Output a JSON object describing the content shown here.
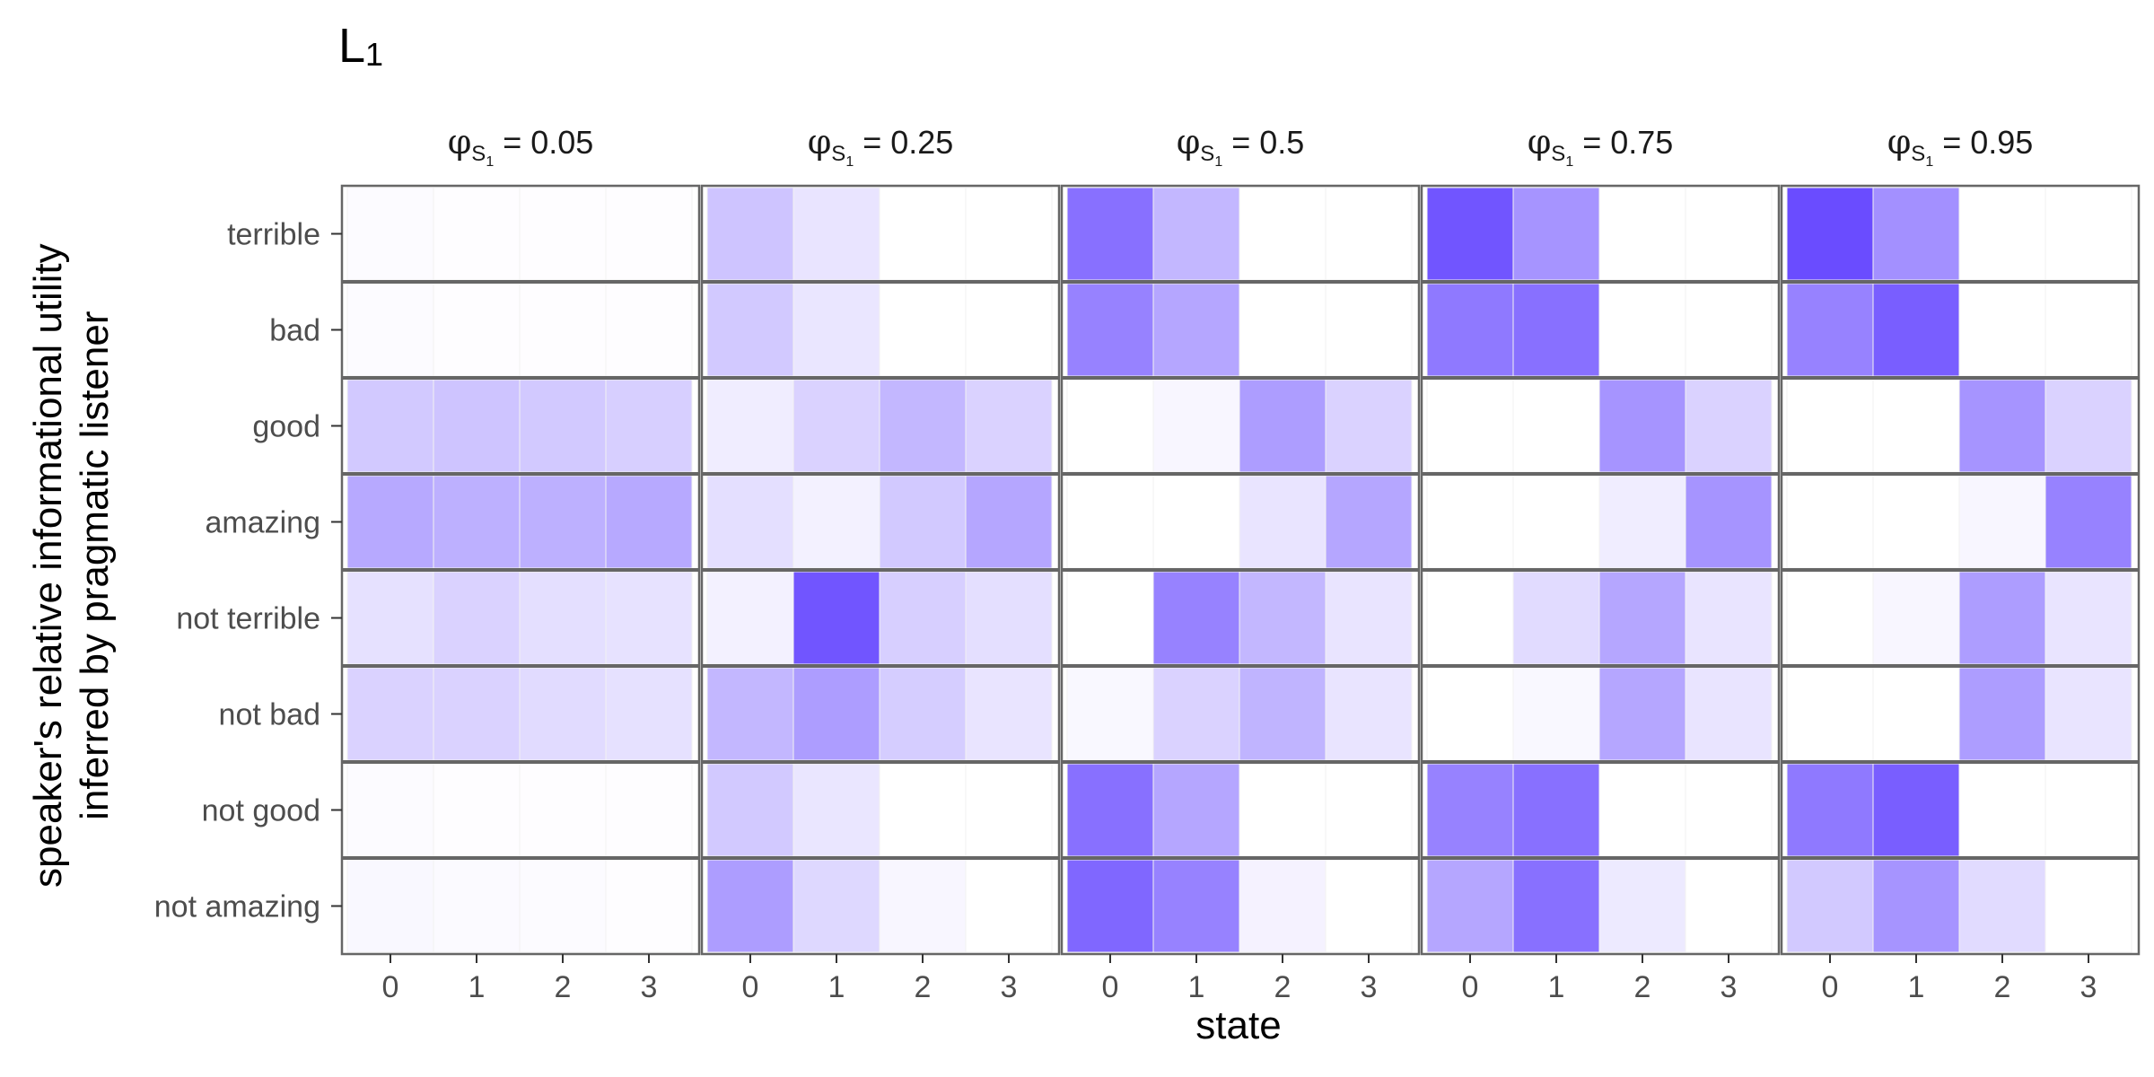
{
  "title_main": "L",
  "title_sub": "1",
  "xlabel": "state",
  "ylabel_line1": "speaker's relative informational utility",
  "ylabel_line2": "inferred by pragmatic listener",
  "facet_param_symbol": "φ",
  "facet_param_sub": "S",
  "facet_param_subsub": "1",
  "colors": {
    "high": "#6a4cff",
    "low": "#ffffff",
    "frame": "#666666",
    "text": "#4d4d4d"
  },
  "chart_data": {
    "type": "heatmap",
    "title": "L1",
    "xlabel": "state",
    "ylabel": "speaker's relative informational utility inferred by pragmatic listener",
    "states": [
      "0",
      "1",
      "2",
      "3"
    ],
    "rows": [
      "terrible",
      "bad",
      "good",
      "amazing",
      "not terrible",
      "not bad",
      "not good",
      "not amazing"
    ],
    "value_scale": "relative intensity 0 (white) to 1 (dark purple)",
    "facets": [
      {
        "label_value": "= 0.05",
        "values": [
          [
            0.02,
            0.01,
            0.01,
            0.01
          ],
          [
            0.02,
            0.01,
            0.01,
            0.01
          ],
          [
            0.3,
            0.33,
            0.3,
            0.27
          ],
          [
            0.48,
            0.44,
            0.44,
            0.48
          ],
          [
            0.17,
            0.25,
            0.18,
            0.16
          ],
          [
            0.25,
            0.25,
            0.2,
            0.17
          ],
          [
            0.02,
            0.01,
            0.01,
            0.01
          ],
          [
            0.04,
            0.03,
            0.02,
            0.01
          ]
        ]
      },
      {
        "label_value": "= 0.25",
        "values": [
          [
            0.33,
            0.15,
            0.0,
            0.0
          ],
          [
            0.3,
            0.14,
            0.0,
            0.0
          ],
          [
            0.1,
            0.25,
            0.4,
            0.25
          ],
          [
            0.18,
            0.08,
            0.3,
            0.5
          ],
          [
            0.08,
            0.95,
            0.27,
            0.18
          ],
          [
            0.4,
            0.55,
            0.28,
            0.15
          ],
          [
            0.3,
            0.14,
            0.0,
            0.0
          ],
          [
            0.55,
            0.22,
            0.05,
            0.0
          ]
        ]
      },
      {
        "label_value": "= 0.5",
        "values": [
          [
            0.8,
            0.4,
            0.0,
            0.0
          ],
          [
            0.7,
            0.5,
            0.0,
            0.0
          ],
          [
            0.0,
            0.05,
            0.55,
            0.25
          ],
          [
            0.0,
            0.0,
            0.15,
            0.5
          ],
          [
            0.0,
            0.7,
            0.4,
            0.15
          ],
          [
            0.04,
            0.25,
            0.42,
            0.15
          ],
          [
            0.8,
            0.5,
            0.0,
            0.0
          ],
          [
            0.85,
            0.7,
            0.07,
            0.0
          ]
        ]
      },
      {
        "label_value": "= 0.75",
        "values": [
          [
            0.95,
            0.6,
            0.0,
            0.0
          ],
          [
            0.75,
            0.8,
            0.0,
            0.0
          ],
          [
            0.0,
            0.0,
            0.6,
            0.25
          ],
          [
            0.0,
            0.0,
            0.1,
            0.6
          ],
          [
            0.0,
            0.2,
            0.5,
            0.15
          ],
          [
            0.0,
            0.04,
            0.5,
            0.15
          ],
          [
            0.7,
            0.8,
            0.0,
            0.0
          ],
          [
            0.5,
            0.8,
            0.12,
            0.0
          ]
        ]
      },
      {
        "label_value": "= 0.95",
        "values": [
          [
            1.0,
            0.62,
            0.0,
            0.0
          ],
          [
            0.7,
            0.9,
            0.0,
            0.0
          ],
          [
            0.0,
            0.0,
            0.6,
            0.25
          ],
          [
            0.0,
            0.0,
            0.05,
            0.7
          ],
          [
            0.0,
            0.05,
            0.55,
            0.15
          ],
          [
            0.0,
            0.0,
            0.55,
            0.15
          ],
          [
            0.75,
            0.9,
            0.0,
            0.0
          ],
          [
            0.3,
            0.6,
            0.2,
            0.0
          ]
        ]
      }
    ]
  }
}
